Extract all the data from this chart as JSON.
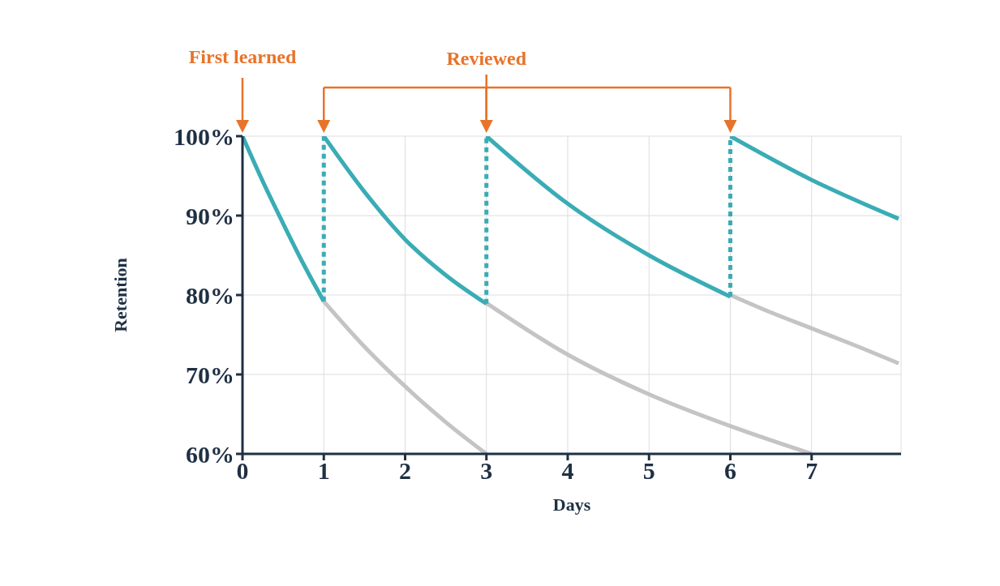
{
  "chart_data": {
    "type": "line",
    "xlabel": "Days",
    "ylabel": "Retention",
    "annotations": [
      "First learned",
      "Reviewed"
    ],
    "xlim": [
      0,
      8.1
    ],
    "xticks": [
      0,
      1,
      2,
      3,
      4,
      5,
      6,
      7
    ],
    "ylim": [
      60,
      100
    ],
    "yticks": [
      {
        "value": 60,
        "label": "60%"
      },
      {
        "value": 70,
        "label": "70%"
      },
      {
        "value": 80,
        "label": "80%"
      },
      {
        "value": 90,
        "label": "90%"
      },
      {
        "value": 100,
        "label": "100%"
      }
    ],
    "grid": true,
    "marker": "none",
    "series": [
      {
        "color": "#c4c4c4",
        "x": [
          1,
          1.5,
          2,
          2.5,
          3
        ],
        "values": [
          79.2,
          73.5,
          68.5,
          64,
          60
        ]
      },
      {
        "color": "#c4c4c4",
        "x": [
          3,
          4,
          5,
          6,
          7
        ],
        "values": [
          79,
          72.5,
          67.5,
          63.5,
          60
        ]
      },
      {
        "color": "#c4c4c4",
        "x": [
          6,
          6.5,
          7,
          7.5,
          8.07
        ],
        "values": [
          80,
          77.8,
          75.8,
          73.8,
          71.4
        ]
      },
      {
        "color": "#3aacb5",
        "x": [
          0,
          0.25,
          0.5,
          0.75,
          1
        ],
        "values": [
          100,
          94.3,
          89,
          83.9,
          79.2
        ]
      },
      {
        "color": "#3aacb5",
        "x": [
          1,
          1.5,
          2,
          2.5,
          3
        ],
        "values": [
          100,
          93,
          87,
          82.5,
          78.9
        ]
      },
      {
        "color": "#3aacb5",
        "x": [
          3,
          4,
          5,
          6
        ],
        "values": [
          100,
          91.5,
          85,
          79.8
        ]
      },
      {
        "color": "#3aacb5",
        "x": [
          6,
          7,
          8.07
        ],
        "values": [
          100,
          94.5,
          89.6
        ]
      },
      {
        "color": "#3aacb5",
        "line_style": "dashed",
        "x": [
          1,
          1
        ],
        "values": [
          79.2,
          100
        ]
      },
      {
        "color": "#3aacb5",
        "line_style": "dashed",
        "x": [
          3,
          3
        ],
        "values": [
          78.9,
          100
        ]
      },
      {
        "color": "#3aacb5",
        "line_style": "dashed",
        "x": [
          6,
          6
        ],
        "values": [
          79.8,
          100
        ]
      }
    ]
  }
}
